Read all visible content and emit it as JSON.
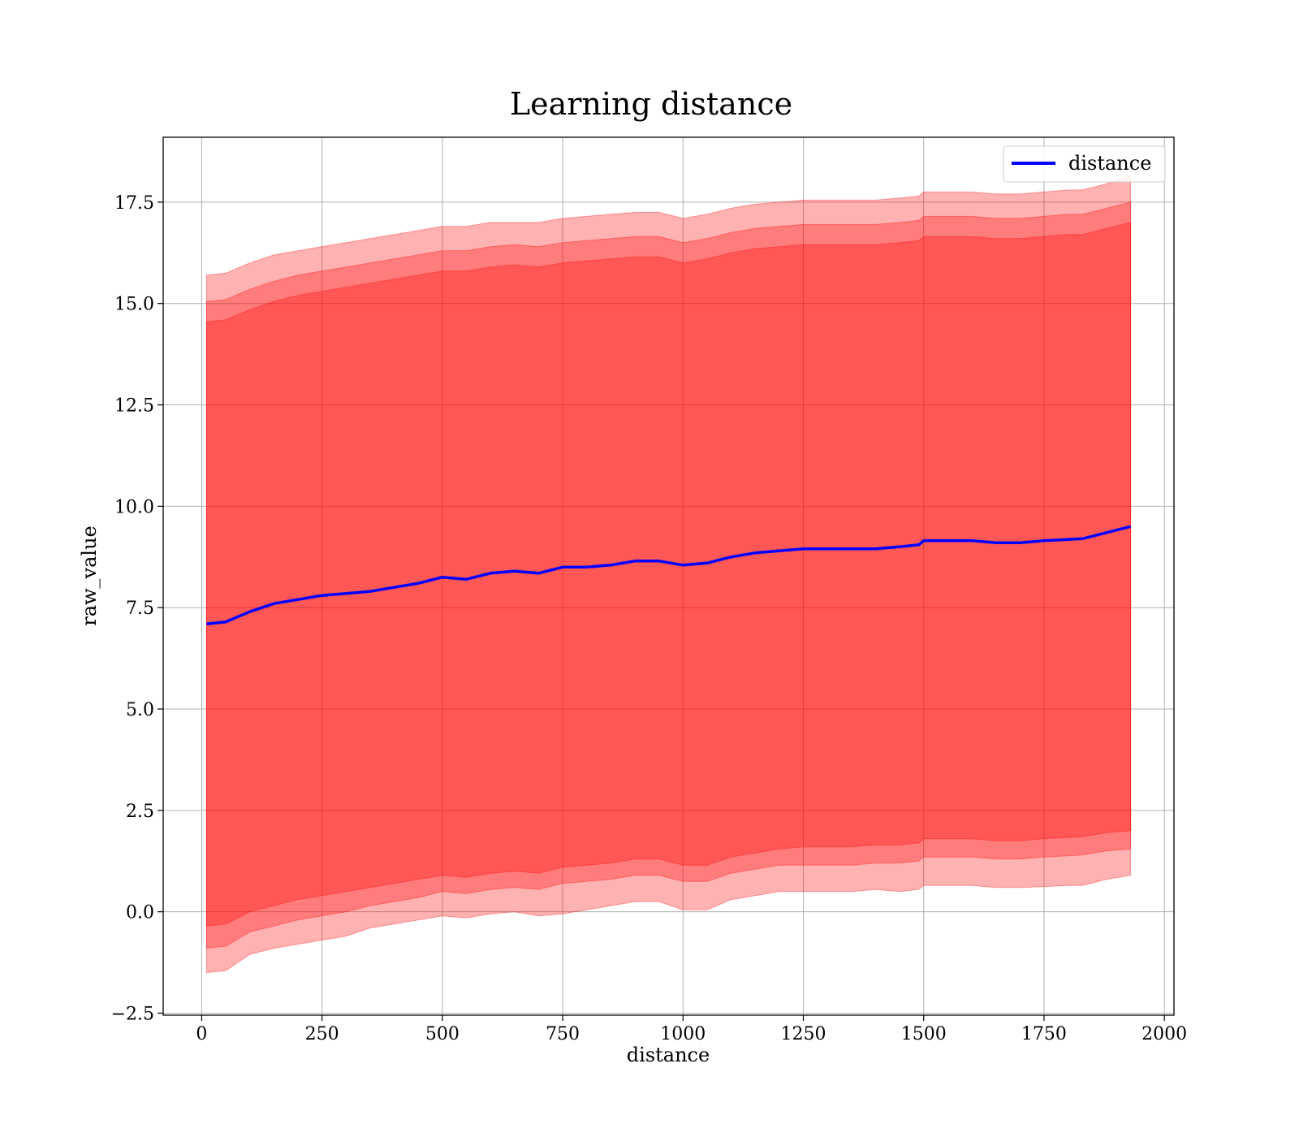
{
  "chart_data": {
    "type": "area",
    "title": "Learning distance",
    "xlabel": "distance",
    "ylabel": "raw_value",
    "xlim": [
      -80,
      2020
    ],
    "ylim": [
      -2.55,
      19.1
    ],
    "xticks": [
      0,
      250,
      500,
      750,
      1000,
      1250,
      1500,
      1750,
      2000
    ],
    "yticks": [
      -2.5,
      0.0,
      2.5,
      5.0,
      7.5,
      10.0,
      12.5,
      15.0,
      17.5
    ],
    "ytick_labels": [
      "−2.5",
      "0.0",
      "2.5",
      "5.0",
      "7.5",
      "10.0",
      "12.5",
      "15.0",
      "17.5"
    ],
    "grid": true,
    "legend": {
      "position": "top-right",
      "entries": [
        "distance"
      ]
    },
    "colors": {
      "line": "#0000ff",
      "band": "#ff0000",
      "band_opacity": 0.3
    },
    "x": [
      10,
      50,
      100,
      150,
      200,
      250,
      300,
      350,
      400,
      450,
      500,
      550,
      600,
      650,
      700,
      750,
      800,
      850,
      900,
      950,
      1000,
      1050,
      1100,
      1150,
      1200,
      1250,
      1300,
      1350,
      1400,
      1450,
      1490,
      1500,
      1550,
      1600,
      1650,
      1700,
      1750,
      1800,
      1830,
      1880,
      1930
    ],
    "series": [
      {
        "name": "distance",
        "values": [
          7.1,
          7.15,
          7.4,
          7.6,
          7.7,
          7.8,
          7.85,
          7.9,
          8.0,
          8.1,
          8.25,
          8.2,
          8.35,
          8.4,
          8.35,
          8.5,
          8.5,
          8.55,
          8.65,
          8.65,
          8.55,
          8.6,
          8.75,
          8.85,
          8.9,
          8.95,
          8.95,
          8.95,
          8.95,
          9.0,
          9.05,
          9.15,
          9.15,
          9.15,
          9.1,
          9.1,
          9.15,
          9.18,
          9.2,
          9.35,
          9.5
        ]
      }
    ],
    "bands": [
      {
        "lower": [
          -1.5,
          -1.45,
          -1.05,
          -0.9,
          -0.8,
          -0.7,
          -0.6,
          -0.4,
          -0.3,
          -0.2,
          -0.1,
          -0.15,
          -0.05,
          0.0,
          -0.1,
          -0.05,
          0.05,
          0.15,
          0.25,
          0.25,
          0.05,
          0.05,
          0.3,
          0.4,
          0.5,
          0.5,
          0.5,
          0.5,
          0.55,
          0.5,
          0.55,
          0.65,
          0.65,
          0.65,
          0.6,
          0.6,
          0.62,
          0.65,
          0.65,
          0.8,
          0.9
        ],
        "upper": [
          15.7,
          15.75,
          16.0,
          16.2,
          16.3,
          16.4,
          16.5,
          16.6,
          16.7,
          16.8,
          16.9,
          16.9,
          17.0,
          17.0,
          17.0,
          17.1,
          17.15,
          17.2,
          17.25,
          17.25,
          17.1,
          17.2,
          17.35,
          17.45,
          17.5,
          17.55,
          17.55,
          17.55,
          17.55,
          17.6,
          17.65,
          17.75,
          17.75,
          17.75,
          17.7,
          17.7,
          17.75,
          17.8,
          17.8,
          17.95,
          18.15
        ]
      },
      {
        "lower": [
          -0.9,
          -0.85,
          -0.5,
          -0.35,
          -0.2,
          -0.1,
          0.0,
          0.15,
          0.25,
          0.35,
          0.5,
          0.45,
          0.55,
          0.6,
          0.55,
          0.7,
          0.75,
          0.8,
          0.9,
          0.9,
          0.75,
          0.75,
          0.95,
          1.05,
          1.15,
          1.15,
          1.15,
          1.15,
          1.2,
          1.2,
          1.25,
          1.35,
          1.35,
          1.35,
          1.3,
          1.3,
          1.35,
          1.38,
          1.4,
          1.5,
          1.55
        ],
        "upper": [
          15.05,
          15.1,
          15.35,
          15.55,
          15.7,
          15.8,
          15.9,
          16.0,
          16.1,
          16.2,
          16.3,
          16.3,
          16.4,
          16.45,
          16.4,
          16.5,
          16.55,
          16.6,
          16.65,
          16.65,
          16.5,
          16.6,
          16.75,
          16.85,
          16.9,
          16.95,
          16.95,
          16.95,
          16.95,
          17.0,
          17.05,
          17.15,
          17.15,
          17.15,
          17.1,
          17.1,
          17.15,
          17.2,
          17.2,
          17.35,
          17.5
        ]
      },
      {
        "lower": [
          -0.35,
          -0.3,
          0.0,
          0.15,
          0.3,
          0.4,
          0.5,
          0.6,
          0.7,
          0.8,
          0.9,
          0.85,
          0.95,
          1.0,
          0.95,
          1.1,
          1.15,
          1.2,
          1.3,
          1.3,
          1.15,
          1.15,
          1.35,
          1.45,
          1.55,
          1.6,
          1.6,
          1.6,
          1.65,
          1.65,
          1.7,
          1.8,
          1.8,
          1.8,
          1.75,
          1.75,
          1.8,
          1.83,
          1.85,
          1.95,
          2.0
        ],
        "upper": [
          14.55,
          14.6,
          14.85,
          15.05,
          15.2,
          15.3,
          15.4,
          15.5,
          15.6,
          15.7,
          15.8,
          15.8,
          15.9,
          15.95,
          15.9,
          16.0,
          16.05,
          16.1,
          16.15,
          16.15,
          16.0,
          16.1,
          16.25,
          16.35,
          16.4,
          16.45,
          16.45,
          16.45,
          16.45,
          16.5,
          16.55,
          16.65,
          16.65,
          16.65,
          16.6,
          16.6,
          16.65,
          16.7,
          16.7,
          16.85,
          17.0
        ]
      }
    ]
  }
}
